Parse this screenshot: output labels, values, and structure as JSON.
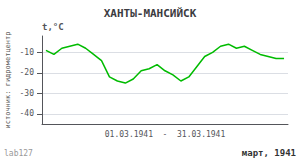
{
  "chart_data": {
    "type": "line",
    "title": "ХАНТЫ-МАНСИЙСК",
    "ylabel": "t,°C",
    "xlabel": "01.03.1941  -  31.03.1941",
    "annotations": [
      "март, 1941",
      "источник: гидрометцентр",
      "lab127"
    ],
    "x": [
      1,
      2,
      3,
      4,
      5,
      6,
      7,
      8,
      9,
      10,
      11,
      12,
      13,
      14,
      15,
      16,
      17,
      18,
      19,
      20,
      21,
      22,
      23,
      24,
      25,
      26,
      27,
      28,
      29,
      30,
      31
    ],
    "values": [
      -9,
      -11,
      -8,
      -7,
      -6,
      -8,
      -11,
      -14,
      -22,
      -24,
      -25,
      -23,
      -19,
      -18,
      -16,
      -19,
      -21,
      -24,
      -22,
      -17,
      -12,
      -10,
      -7,
      -6,
      -8,
      -7,
      -9,
      -11,
      -12,
      -13,
      -13
    ],
    "color": "#00bb00",
    "xlim": [
      0.5,
      31.5
    ],
    "ylim": [
      -45,
      -2
    ],
    "yticks": [
      -40,
      -30,
      -20,
      -10
    ],
    "grid": true,
    "tick_labels": "y"
  }
}
